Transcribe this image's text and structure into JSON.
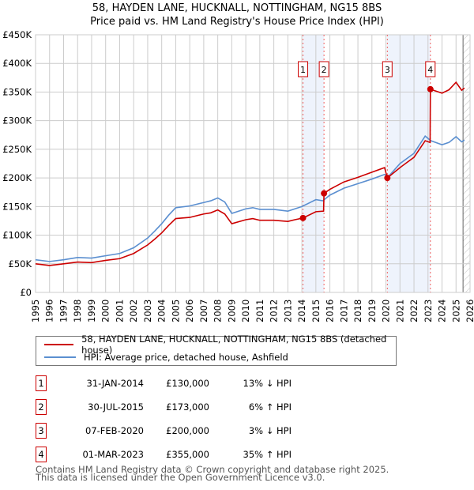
{
  "header": {
    "line1": "58, HAYDEN LANE, HUCKNALL, NOTTINGHAM, NG15 8BS",
    "line2": "Price paid vs. HM Land Registry's House Price Index (HPI)"
  },
  "chart_data": {
    "type": "line",
    "title": "58, HAYDEN LANE, HUCKNALL, NOTTINGHAM, NG15 8BS — Price paid vs. HM Land Registry's House Price Index (HPI)",
    "xlim": [
      1995,
      2026
    ],
    "ylim": [
      0,
      450000
    ],
    "yticks": [
      {
        "v": 0,
        "label": "£0"
      },
      {
        "v": 50000,
        "label": "£50K"
      },
      {
        "v": 100000,
        "label": "£100K"
      },
      {
        "v": 150000,
        "label": "£150K"
      },
      {
        "v": 200000,
        "label": "£200K"
      },
      {
        "v": 250000,
        "label": "£250K"
      },
      {
        "v": 300000,
        "label": "£300K"
      },
      {
        "v": 350000,
        "label": "£350K"
      },
      {
        "v": 400000,
        "label": "£400K"
      },
      {
        "v": 450000,
        "label": "£450K"
      }
    ],
    "xticks": [
      "1995",
      "1996",
      "1997",
      "1998",
      "1999",
      "2000",
      "2001",
      "2002",
      "2003",
      "2004",
      "2005",
      "2006",
      "2007",
      "2008",
      "2009",
      "2010",
      "2011",
      "2012",
      "2013",
      "2014",
      "2015",
      "2016",
      "2017",
      "2018",
      "2019",
      "2020",
      "2021",
      "2022",
      "2023",
      "2024",
      "2025",
      "2026"
    ],
    "grid": true,
    "shaded": [
      [
        2014.08,
        2015.58
      ],
      [
        2020.1,
        2023.17
      ]
    ],
    "forecast_hatch_from": 2025.5,
    "series": [
      {
        "name": "58, HAYDEN LANE, HUCKNALL, NOTTINGHAM, NG15 8BS (detached house)",
        "color": "#cc0000",
        "x": [
          1995,
          1996,
          1997,
          1998,
          1999,
          2000,
          2001,
          2002,
          2003,
          2003.5,
          2004,
          2004.5,
          2005,
          2006,
          2007,
          2007.5,
          2008,
          2008.5,
          2009,
          2010,
          2010.5,
          2011,
          2012,
          2013,
          2013.5,
          2014.08,
          2015,
          2015.55,
          2015.58,
          2016,
          2017,
          2018,
          2019,
          2019.9,
          2020.1,
          2021,
          2022,
          2022.8,
          2023.15,
          2023.17,
          2024,
          2024.5,
          2025,
          2025.4,
          2025.6
        ],
        "y": [
          50000,
          47000,
          50000,
          53000,
          52000,
          56000,
          59000,
          68000,
          83000,
          93000,
          104000,
          117000,
          129000,
          131000,
          137000,
          139000,
          144000,
          137000,
          120000,
          127000,
          129000,
          126000,
          126000,
          124000,
          127000,
          130000,
          141000,
          142000,
          173000,
          180000,
          193000,
          201000,
          210000,
          218000,
          200000,
          218000,
          236000,
          265000,
          262000,
          355000,
          348000,
          354000,
          367000,
          353000,
          357000
        ]
      },
      {
        "name": "HPI: Average price, detached house, Ashfield",
        "color": "#5b8fd0",
        "x": [
          1995,
          1996,
          1997,
          1998,
          1999,
          2000,
          2001,
          2002,
          2003,
          2003.5,
          2004,
          2004.5,
          2005,
          2006,
          2007,
          2007.5,
          2008,
          2008.5,
          2009,
          2010,
          2010.5,
          2011,
          2012,
          2013,
          2013.5,
          2014,
          2015,
          2015.5,
          2016,
          2017,
          2018,
          2019,
          2019.9,
          2020.2,
          2021,
          2022,
          2022.8,
          2023.2,
          2024,
          2024.5,
          2025,
          2025.4,
          2025.6
        ],
        "y": [
          57000,
          54000,
          57000,
          61000,
          60000,
          64000,
          68000,
          78000,
          95000,
          107000,
          120000,
          135000,
          148000,
          151000,
          157000,
          160000,
          165000,
          158000,
          138000,
          146000,
          148000,
          145000,
          145000,
          142000,
          146000,
          150000,
          162000,
          160000,
          170000,
          182000,
          190000,
          198000,
          206000,
          203000,
          225000,
          243000,
          273000,
          265000,
          258000,
          262000,
          272000,
          263000,
          266000
        ]
      }
    ],
    "sales": [
      {
        "n": "1",
        "x": 2014.08,
        "price": 130000,
        "date": "31-JAN-2014",
        "price_label": "£130,000",
        "hpi": "13% ↓ HPI"
      },
      {
        "n": "2",
        "x": 2015.58,
        "price": 173000,
        "date": "30-JUL-2015",
        "price_label": "£173,000",
        "hpi": "6% ↑ HPI"
      },
      {
        "n": "3",
        "x": 2020.1,
        "price": 200000,
        "date": "07-FEB-2020",
        "price_label": "£200,000",
        "hpi": "3% ↓ HPI"
      },
      {
        "n": "4",
        "x": 2023.17,
        "price": 355000,
        "date": "01-MAR-2023",
        "price_label": "£355,000",
        "hpi": "35% ↑ HPI"
      }
    ]
  },
  "legend": {
    "red": "58, HAYDEN LANE, HUCKNALL, NOTTINGHAM, NG15 8BS (detached house)",
    "blue": "HPI: Average price, detached house, Ashfield"
  },
  "footer": {
    "line1": "Contains HM Land Registry data © Crown copyright and database right 2025.",
    "line2": "This data is licensed under the Open Government Licence v3.0."
  }
}
